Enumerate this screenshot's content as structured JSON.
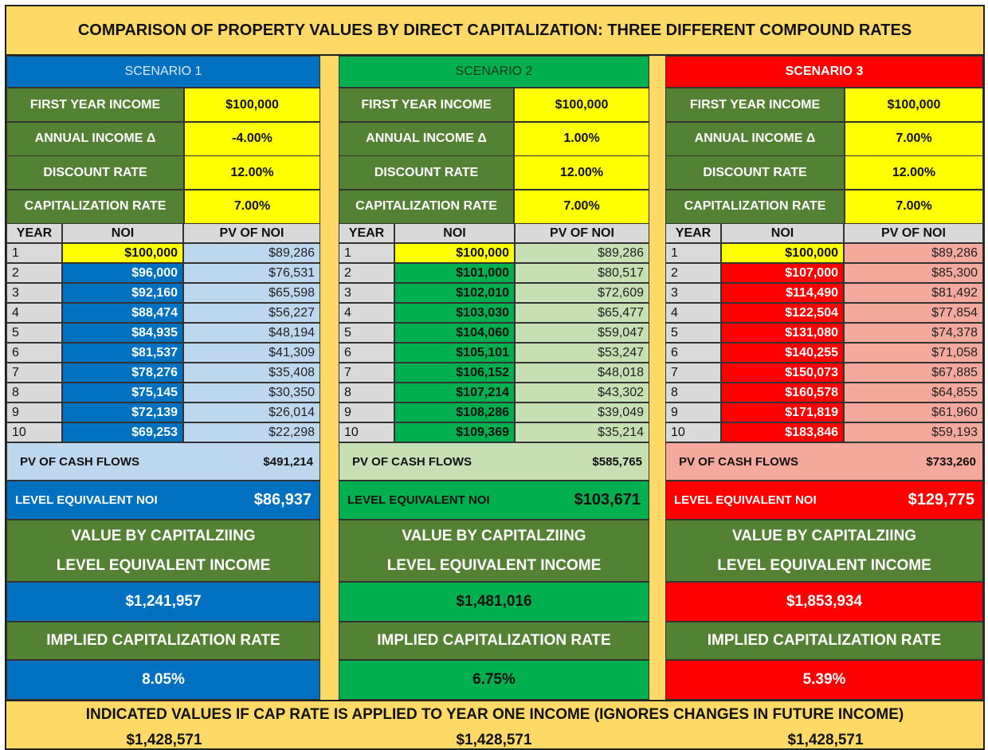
{
  "title": "COMPARISON OF PROPERTY VALUES BY DIRECT CAPITALIZATION: THREE DIFFERENT COMPOUND RATES",
  "labels": {
    "first_year_income": "FIRST YEAR INCOME",
    "annual_income_delta": "ANNUAL INCOME Δ",
    "discount_rate": "DISCOUNT RATE",
    "capitalization_rate": "CAPITALIZATION RATE",
    "year": "YEAR",
    "noi": "NOI",
    "pv_of_noi": "PV OF NOI",
    "pv_of_cash_flows": "PV OF CASH FLOWS",
    "level_equivalent_noi": "LEVEL EQUIVALENT NOI",
    "value_line1": "VALUE BY CAPITALZIING",
    "value_line2": "LEVEL EQUIVALENT INCOME",
    "implied_cap_rate": "IMPLIED CAPITALIZATION RATE"
  },
  "colors": {
    "olive": "#548235",
    "yellow": "#FFFF00",
    "gray": "#D9D9D9",
    "gold": "#FFD966"
  },
  "scenarios": [
    {
      "name": "SCENARIO 1",
      "accent": "#0070C0",
      "light": "#BDD7EE",
      "first_year_income": "$100,000",
      "annual_income_delta": "-4.00%",
      "discount_rate": "12.00%",
      "capitalization_rate": "7.00%",
      "rows": [
        [
          "1",
          "$100,000",
          "$89,286"
        ],
        [
          "2",
          "$96,000",
          "$76,531"
        ],
        [
          "3",
          "$92,160",
          "$65,598"
        ],
        [
          "4",
          "$88,474",
          "$56,227"
        ],
        [
          "5",
          "$84,935",
          "$48,194"
        ],
        [
          "6",
          "$81,537",
          "$41,309"
        ],
        [
          "7",
          "$78,276",
          "$35,408"
        ],
        [
          "8",
          "$75,145",
          "$30,350"
        ],
        [
          "9",
          "$72,139",
          "$26,014"
        ],
        [
          "10",
          "$69,253",
          "$22,298"
        ]
      ],
      "pv_of_cash_flows": "$491,214",
      "level_equivalent_noi": "$86,937",
      "value": "$1,241,957",
      "implied_cap_rate": "8.05%"
    },
    {
      "name": "SCENARIO 2",
      "accent": "#00B050",
      "light": "#C6E0B4",
      "first_year_income": "$100,000",
      "annual_income_delta": "1.00%",
      "discount_rate": "12.00%",
      "capitalization_rate": "7.00%",
      "rows": [
        [
          "1",
          "$100,000",
          "$89,286"
        ],
        [
          "2",
          "$101,000",
          "$80,517"
        ],
        [
          "3",
          "$102,010",
          "$72,609"
        ],
        [
          "4",
          "$103,030",
          "$65,477"
        ],
        [
          "5",
          "$104,060",
          "$59,047"
        ],
        [
          "6",
          "$105,101",
          "$53,247"
        ],
        [
          "7",
          "$106,152",
          "$48,018"
        ],
        [
          "8",
          "$107,214",
          "$43,302"
        ],
        [
          "9",
          "$108,286",
          "$39,049"
        ],
        [
          "10",
          "$109,369",
          "$35,214"
        ]
      ],
      "pv_of_cash_flows": "$585,765",
      "level_equivalent_noi": "$103,671",
      "value": "$1,481,016",
      "implied_cap_rate": "6.75%"
    },
    {
      "name": "SCENARIO 3",
      "accent": "#FF0000",
      "light": "#F4A99C",
      "first_year_income": "$100,000",
      "annual_income_delta": "7.00%",
      "discount_rate": "12.00%",
      "capitalization_rate": "7.00%",
      "rows": [
        [
          "1",
          "$100,000",
          "$89,286"
        ],
        [
          "2",
          "$107,000",
          "$85,300"
        ],
        [
          "3",
          "$114,490",
          "$81,492"
        ],
        [
          "4",
          "$122,504",
          "$77,854"
        ],
        [
          "5",
          "$131,080",
          "$74,378"
        ],
        [
          "6",
          "$140,255",
          "$71,058"
        ],
        [
          "7",
          "$150,073",
          "$67,885"
        ],
        [
          "8",
          "$160,578",
          "$64,855"
        ],
        [
          "9",
          "$171,819",
          "$61,960"
        ],
        [
          "10",
          "$183,846",
          "$59,193"
        ]
      ],
      "pv_of_cash_flows": "$733,260",
      "level_equivalent_noi": "$129,775",
      "value": "$1,853,934",
      "implied_cap_rate": "5.39%"
    }
  ],
  "footer": {
    "text": "INDICATED VALUES IF CAP RATE IS APPLIED TO YEAR ONE INCOME (IGNORES CHANGES IN FUTURE INCOME)",
    "values": [
      "$1,428,571",
      "$1,428,571",
      "$1,428,571"
    ]
  }
}
